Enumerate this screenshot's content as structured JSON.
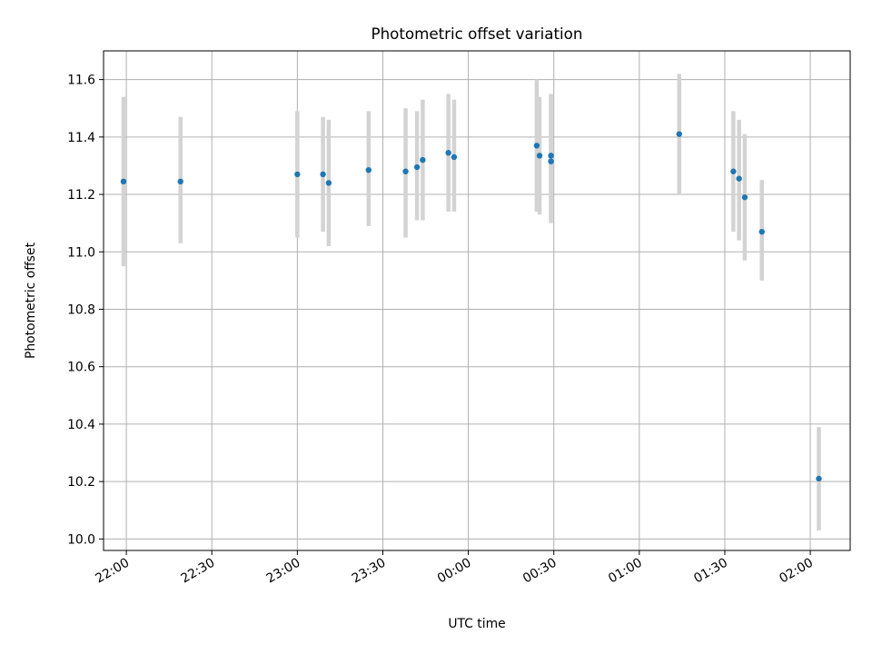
{
  "chart_data": {
    "type": "scatter",
    "title": "Photometric offset variation",
    "xlabel": "UTC time",
    "ylabel": "Photometric offset",
    "x_axis_type": "time",
    "x_reference_date": "",
    "xlim": [
      "21:52",
      "02:14"
    ],
    "ylim": [
      9.96,
      11.7
    ],
    "yticks": [
      10.0,
      10.2,
      10.4,
      10.6,
      10.8,
      11.0,
      11.2,
      11.4,
      11.6
    ],
    "ytick_labels": [
      "10.0",
      "10.2",
      "10.4",
      "10.6",
      "10.8",
      "11.0",
      "11.2",
      "11.4",
      "11.6"
    ],
    "xticks": [
      "22:00",
      "22:30",
      "23:00",
      "23:30",
      "00:00",
      "00:30",
      "01:00",
      "01:30",
      "02:00"
    ],
    "xtick_labels": [
      "22:00",
      "22:30",
      "23:00",
      "23:30",
      "00:00",
      "00:30",
      "01:00",
      "01:30",
      "02:00"
    ],
    "grid": true,
    "marker_color": "#1f77b4",
    "errorbar_color": "#d3d3d3",
    "points": [
      {
        "time": "21:59",
        "y": 11.245,
        "ymin": 10.95,
        "ymax": 11.54
      },
      {
        "time": "22:19",
        "y": 11.245,
        "ymin": 11.03,
        "ymax": 11.47
      },
      {
        "time": "23:00",
        "y": 11.27,
        "ymin": 11.05,
        "ymax": 11.49
      },
      {
        "time": "23:09",
        "y": 11.27,
        "ymin": 11.07,
        "ymax": 11.47
      },
      {
        "time": "23:11",
        "y": 11.24,
        "ymin": 11.02,
        "ymax": 11.46
      },
      {
        "time": "23:25",
        "y": 11.285,
        "ymin": 11.09,
        "ymax": 11.49
      },
      {
        "time": "23:38",
        "y": 11.28,
        "ymin": 11.05,
        "ymax": 11.5
      },
      {
        "time": "23:42",
        "y": 11.295,
        "ymin": 11.11,
        "ymax": 11.49
      },
      {
        "time": "23:44",
        "y": 11.32,
        "ymin": 11.11,
        "ymax": 11.53
      },
      {
        "time": "23:53",
        "y": 11.345,
        "ymin": 11.14,
        "ymax": 11.55
      },
      {
        "time": "23:55",
        "y": 11.33,
        "ymin": 11.14,
        "ymax": 11.53
      },
      {
        "time": "00:24",
        "y": 11.37,
        "ymin": 11.14,
        "ymax": 11.6
      },
      {
        "time": "00:25",
        "y": 11.335,
        "ymin": 11.13,
        "ymax": 11.54
      },
      {
        "time": "00:29",
        "y": 11.315,
        "ymin": 11.1,
        "ymax": 11.55
      },
      {
        "time": "00:29",
        "y": 11.335,
        "ymin": 11.12,
        "ymax": 11.54
      },
      {
        "time": "01:14",
        "y": 11.41,
        "ymin": 11.2,
        "ymax": 11.62
      },
      {
        "time": "01:33",
        "y": 11.28,
        "ymin": 11.07,
        "ymax": 11.49
      },
      {
        "time": "01:35",
        "y": 11.255,
        "ymin": 11.04,
        "ymax": 11.46
      },
      {
        "time": "01:37",
        "y": 11.19,
        "ymin": 10.97,
        "ymax": 11.41
      },
      {
        "time": "01:43",
        "y": 11.07,
        "ymin": 10.9,
        "ymax": 11.25
      },
      {
        "time": "02:03",
        "y": 10.21,
        "ymin": 10.03,
        "ymax": 10.39
      }
    ]
  }
}
